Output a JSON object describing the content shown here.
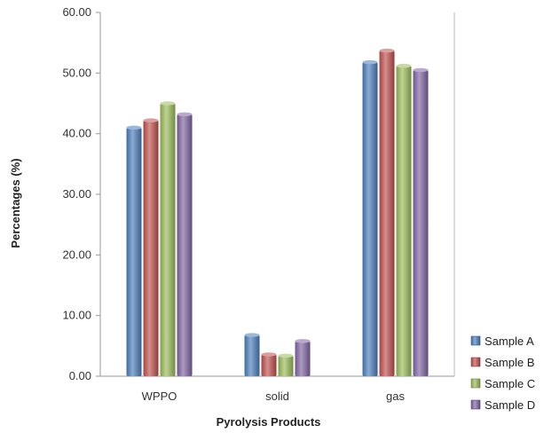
{
  "chart_data": {
    "type": "bar",
    "xlabel": "Pyrolysis Products",
    "ylabel": "Percentages (%)",
    "ylim": [
      0,
      60
    ],
    "yticks": [
      "0.00",
      "10.00",
      "20.00",
      "30.00",
      "40.00",
      "50.00",
      "60.00"
    ],
    "categories": [
      "WPPO",
      "solid",
      "gas"
    ],
    "series": [
      {
        "name": "Sample A",
        "color": "#4a7ebb",
        "values": [
          41.0,
          6.8,
          51.8
        ]
      },
      {
        "name": "Sample B",
        "color": "#c0504d",
        "values": [
          42.2,
          3.6,
          53.7
        ]
      },
      {
        "name": "Sample C",
        "color": "#9bbb59",
        "values": [
          45.0,
          3.4,
          51.2
        ]
      },
      {
        "name": "Sample D",
        "color": "#8064a2",
        "values": [
          43.2,
          5.8,
          50.5
        ]
      }
    ],
    "grid": false,
    "legend_position": "bottom-right"
  }
}
